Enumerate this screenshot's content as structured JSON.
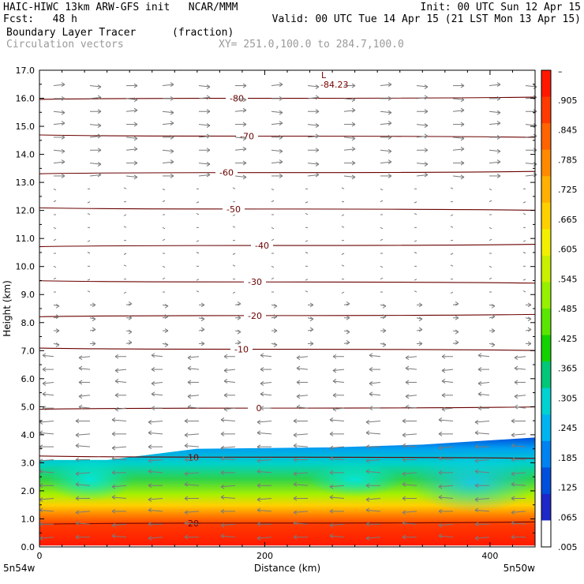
{
  "header": {
    "line1_left": "HAIC-HIWC 13km ARW-GFS init   NCAR/MMM",
    "line1_right": "Init: 00 UTC Sun 12 Apr 15",
    "line2_left": "Fcst:   48 h",
    "line2_right": "Valid: 00 UTC Tue 14 Apr 15 (21 LST Mon 13 Apr 15)",
    "field_name": "Boundary Layer Tracer",
    "field_units": "(fraction)",
    "vector_label": "Circulation vectors",
    "xy_label": "XY= 251.0,100.0 to 284.7,100.0"
  },
  "chart_data": {
    "type": "heatmap",
    "title": "Boundary Layer Tracer (fraction)",
    "xlabel": "Distance (km)",
    "ylabel": "Height (km)",
    "xlim": [
      0,
      440
    ],
    "ylim": [
      0,
      17
    ],
    "x_ticks": [
      0,
      200,
      400
    ],
    "y_ticks": [
      "0.0",
      "1.0",
      "2.0",
      "3.0",
      "4.0",
      "5.0",
      "6.0",
      "7.0",
      "8.0",
      "9.0",
      "10.0",
      "11.0",
      "12.0",
      "13.0",
      "14.0",
      "15.0",
      "16.0",
      "17.0"
    ],
    "x_end_labels": {
      "left": "5n54w",
      "right": "5n50w"
    },
    "colorbar_labels": [
      "–",
      ".905",
      ".845",
      ".785",
      ".725",
      ".665",
      ".605",
      ".545",
      ".485",
      ".425",
      ".365",
      ".305",
      ".245",
      ".185",
      ".125",
      ".065",
      ".005"
    ],
    "colorbar_colors": [
      "#ff1800",
      "#ff3a00",
      "#ff6400",
      "#ff8a00",
      "#ffb000",
      "#ffd000",
      "#f2f000",
      "#c8f000",
      "#96f000",
      "#5ae600",
      "#14d200",
      "#00c878",
      "#00d2d2",
      "#00b4f0",
      "#0082f0",
      "#0050dc",
      "#1e28c8",
      "#ffffff"
    ],
    "tracer_top_km": [
      [
        0,
        3.1
      ],
      [
        60,
        3.1
      ],
      [
        140,
        3.5
      ],
      [
        260,
        3.55
      ],
      [
        340,
        3.65
      ],
      [
        440,
        3.9
      ]
    ],
    "temperature_contours_C": [
      {
        "label": "-80",
        "height_km": 16.0
      },
      {
        "label": "-70",
        "height_km": 14.65
      },
      {
        "label": "-60",
        "height_km": 13.35
      },
      {
        "label": "-50",
        "height_km": 12.05
      },
      {
        "label": "-40",
        "height_km": 10.75
      },
      {
        "label": "-30",
        "height_km": 9.45
      },
      {
        "label": "-20",
        "height_km": 8.25
      },
      {
        "label": "-10",
        "height_km": 7.05
      },
      {
        "label": "0",
        "height_km": 4.95
      },
      {
        "label": "10",
        "height_km": 3.2
      },
      {
        "label": "20",
        "height_km": 0.85
      }
    ],
    "minimum_label": {
      "symbol": "L",
      "value": "-84.23"
    }
  }
}
